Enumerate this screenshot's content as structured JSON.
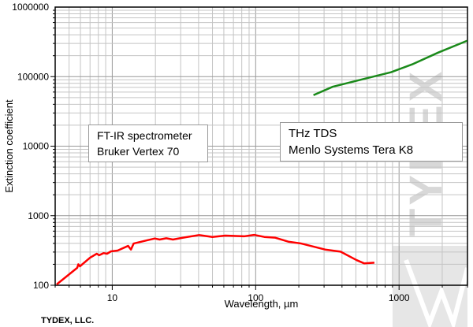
{
  "chart_data": {
    "type": "line",
    "xlabel": "Wavelength, µm",
    "ylabel": "Extinction coefficient",
    "xscale": "log",
    "yscale": "log",
    "xlim": [
      4,
      3000
    ],
    "ylim": [
      100,
      1000000
    ],
    "grid": true,
    "x_ticks": [
      "10",
      "100",
      "1000"
    ],
    "y_ticks": [
      "100",
      "1000",
      "10000",
      "100000",
      "1000000"
    ],
    "series": [
      {
        "color": "#ff0000",
        "points": [
          [
            4.1,
            103
          ],
          [
            5.7,
            178
          ],
          [
            5.8,
            200
          ],
          [
            5.95,
            187
          ],
          [
            7.0,
            249
          ],
          [
            7.8,
            284
          ],
          [
            8.1,
            270
          ],
          [
            8.7,
            290
          ],
          [
            9.2,
            284
          ],
          [
            9.8,
            307
          ],
          [
            10.9,
            315
          ],
          [
            12.9,
            368
          ],
          [
            13.5,
            326
          ],
          [
            14.1,
            398
          ],
          [
            17.4,
            442
          ],
          [
            19.8,
            470
          ],
          [
            21.4,
            454
          ],
          [
            23.8,
            474
          ],
          [
            26.5,
            454
          ],
          [
            31.2,
            483
          ],
          [
            40.3,
            527
          ],
          [
            49.9,
            495
          ],
          [
            61.5,
            517
          ],
          [
            82.9,
            505
          ],
          [
            97.5,
            530
          ],
          [
            115,
            495
          ],
          [
            137,
            483
          ],
          [
            169,
            423
          ],
          [
            208,
            398
          ],
          [
            305,
            326
          ],
          [
            391,
            304
          ],
          [
            505,
            230
          ],
          [
            572,
            206
          ],
          [
            673,
            211
          ]
        ]
      },
      {
        "color": "#1a8a1a",
        "points": [
          [
            253,
            54200
          ],
          [
            345,
            71600
          ],
          [
            572,
            93000
          ],
          [
            878,
            115600
          ],
          [
            1233,
            150000
          ],
          [
            1877,
            222000
          ],
          [
            2980,
            328000
          ]
        ]
      }
    ],
    "annotations": [
      {
        "lines": [
          "FT-IR spectrometer",
          "Bruker Vertex 70"
        ]
      },
      {
        "lines": [
          "THz TDS",
          "Menlo Systems Tera K8"
        ]
      }
    ],
    "watermark": "TYDEX"
  },
  "footer": "TYDEX, LLC."
}
